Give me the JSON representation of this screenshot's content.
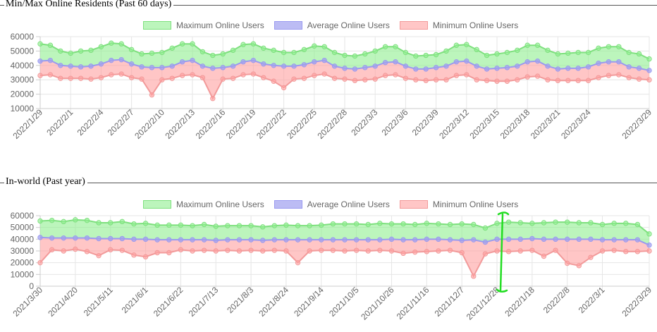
{
  "colors": {
    "max_fill": "rgba(144,238,144,0.6)",
    "max_line": "#7ee07e",
    "avg_fill": "rgba(160,160,240,0.7)",
    "avg_line": "#9a9af0",
    "min_fill": "rgba(255,160,160,0.6)",
    "min_line": "#f29a9a"
  },
  "legend": {
    "max_label": "Maximum Online Users",
    "avg_label": "Average Online Users",
    "min_label": "Minimum Online Users"
  },
  "chart_data": [
    {
      "type": "area",
      "title": "Min/Max Online Residents (Past 60 days)",
      "ylim": [
        10000,
        60000
      ],
      "yticks": [
        "60000",
        "50000",
        "40000",
        "30000",
        "20000",
        "10000"
      ],
      "ytick_values": [
        60000,
        50000,
        40000,
        30000,
        20000,
        10000
      ],
      "xtick_labels": [
        "2022/1/29",
        "2022/2/1",
        "2022/2/4",
        "2022/2/7",
        "2022/2/10",
        "2022/2/13",
        "2022/2/16",
        "2022/2/19",
        "2022/2/22",
        "2022/2/25",
        "2022/2/28",
        "2022/3/3",
        "2022/3/6",
        "2022/3/9",
        "2022/3/12",
        "2022/3/15",
        "2022/3/18",
        "2022/3/21",
        "2022/3/24",
        "2022/3/29"
      ],
      "xtick_indices": [
        0,
        3,
        6,
        9,
        12,
        15,
        18,
        21,
        24,
        27,
        30,
        33,
        36,
        39,
        42,
        45,
        48,
        51,
        54,
        60
      ],
      "series": [
        {
          "name": "Maximum Online Users",
          "values": [
            55000,
            54000,
            50000,
            48500,
            50000,
            50500,
            53000,
            55500,
            55000,
            51000,
            48000,
            48500,
            49000,
            52000,
            55000,
            55000,
            49500,
            47000,
            48000,
            50500,
            54500,
            55000,
            52000,
            50500,
            49000,
            49000,
            51000,
            53500,
            53000,
            49000,
            47000,
            46500,
            48000,
            50000,
            53000,
            53000,
            49000,
            46500,
            47000,
            47500,
            50000,
            54000,
            54500,
            51000,
            47000,
            48000,
            49000,
            50500,
            54000,
            54000,
            50500,
            48000,
            48500,
            49000,
            49000,
            52000,
            53000,
            53000,
            49000,
            48000,
            44500
          ]
        },
        {
          "name": "Average Online Users",
          "values": [
            43000,
            43500,
            40000,
            39500,
            39000,
            39500,
            41000,
            43500,
            44000,
            41000,
            39000,
            38500,
            38500,
            39500,
            42500,
            43500,
            39500,
            38000,
            38500,
            39500,
            42500,
            43500,
            41000,
            40000,
            39500,
            39500,
            40500,
            42500,
            43500,
            39500,
            38000,
            37500,
            38500,
            39500,
            42000,
            42500,
            39500,
            37500,
            37500,
            38500,
            39500,
            42500,
            43000,
            39500,
            37500,
            38000,
            38500,
            39500,
            42500,
            43000,
            39500,
            37500,
            38000,
            38000,
            39000,
            41500,
            42500,
            42500,
            39000,
            38000,
            36500
          ]
        },
        {
          "name": "Minimum Online Users",
          "values": [
            33000,
            33500,
            31000,
            31000,
            31000,
            30500,
            31500,
            33500,
            34000,
            31500,
            30500,
            19500,
            30000,
            31000,
            33000,
            33500,
            31500,
            17000,
            30500,
            31000,
            33500,
            34000,
            31500,
            29000,
            24500,
            30500,
            31000,
            33000,
            34000,
            31000,
            30500,
            29500,
            30000,
            30500,
            33000,
            33500,
            31000,
            30000,
            29500,
            30000,
            30000,
            33000,
            33500,
            30000,
            29500,
            29000,
            29000,
            30000,
            32000,
            32500,
            30000,
            29500,
            29500,
            29500,
            29500,
            31500,
            33000,
            33500,
            31500,
            30500,
            30000
          ]
        }
      ]
    },
    {
      "type": "area",
      "title": "In-world (Past year)",
      "ylim": [
        0,
        60000
      ],
      "yticks": [
        "60000",
        "50000",
        "40000",
        "30000",
        "20000",
        "10000",
        "0"
      ],
      "ytick_values": [
        60000,
        50000,
        40000,
        30000,
        20000,
        10000,
        0
      ],
      "xtick_labels": [
        "2021/3/30",
        "2021/4/20",
        "2021/5/11",
        "2021/6/1",
        "2021/6/22",
        "2021/7/13",
        "2021/8/3",
        "2021/8/24",
        "2021/9/14",
        "2021/10/5",
        "2021/10/26",
        "2021/11/16",
        "2021/12/7",
        "2021/12/28",
        "2022/1/18",
        "2022/2/8",
        "2022/3/1",
        "2022/3/29"
      ],
      "xtick_indices": [
        0,
        3,
        6,
        9,
        12,
        15,
        18,
        21,
        24,
        27,
        30,
        33,
        36,
        39,
        42,
        45,
        48,
        52
      ],
      "series": [
        {
          "name": "Maximum Online Users",
          "values": [
            55500,
            56000,
            55000,
            56500,
            56000,
            54000,
            54000,
            55000,
            53000,
            53500,
            52000,
            52000,
            52000,
            51500,
            52500,
            51000,
            51500,
            51500,
            51500,
            50500,
            51500,
            52000,
            51500,
            51500,
            52000,
            53000,
            53000,
            53000,
            52500,
            53500,
            53000,
            53000,
            52500,
            53500,
            53000,
            52500,
            53000,
            52500,
            49500,
            53500,
            54500,
            54000,
            53500,
            54000,
            54500,
            54500,
            54000,
            54000,
            52500,
            53500,
            53500,
            52500,
            44500
          ]
        },
        {
          "name": "Average Online Users",
          "values": [
            41500,
            41000,
            41000,
            41000,
            41000,
            40500,
            40500,
            40500,
            40000,
            40000,
            39500,
            39500,
            39500,
            39500,
            39500,
            39000,
            39500,
            39500,
            39500,
            39000,
            39500,
            39500,
            39500,
            39500,
            39500,
            39500,
            39500,
            39500,
            39500,
            39500,
            40000,
            39500,
            39500,
            40000,
            40000,
            39500,
            39000,
            39500,
            37500,
            40000,
            40000,
            40000,
            40500,
            40000,
            40000,
            40000,
            40000,
            40000,
            39500,
            39500,
            39500,
            39500,
            35000
          ]
        },
        {
          "name": "Minimum Online Users",
          "values": [
            20000,
            31000,
            30000,
            31500,
            29500,
            26000,
            31000,
            30500,
            26500,
            25000,
            28500,
            28500,
            31000,
            30000,
            30500,
            30000,
            30500,
            30000,
            30500,
            30000,
            30500,
            30000,
            20000,
            30000,
            30500,
            30500,
            30000,
            30500,
            30000,
            30500,
            30000,
            28000,
            29000,
            29500,
            30000,
            30500,
            28500,
            8500,
            27500,
            30000,
            29500,
            30000,
            30500,
            25500,
            30500,
            19500,
            17500,
            24500,
            30000,
            30500,
            29500,
            29500,
            30000
          ]
        }
      ]
    }
  ]
}
